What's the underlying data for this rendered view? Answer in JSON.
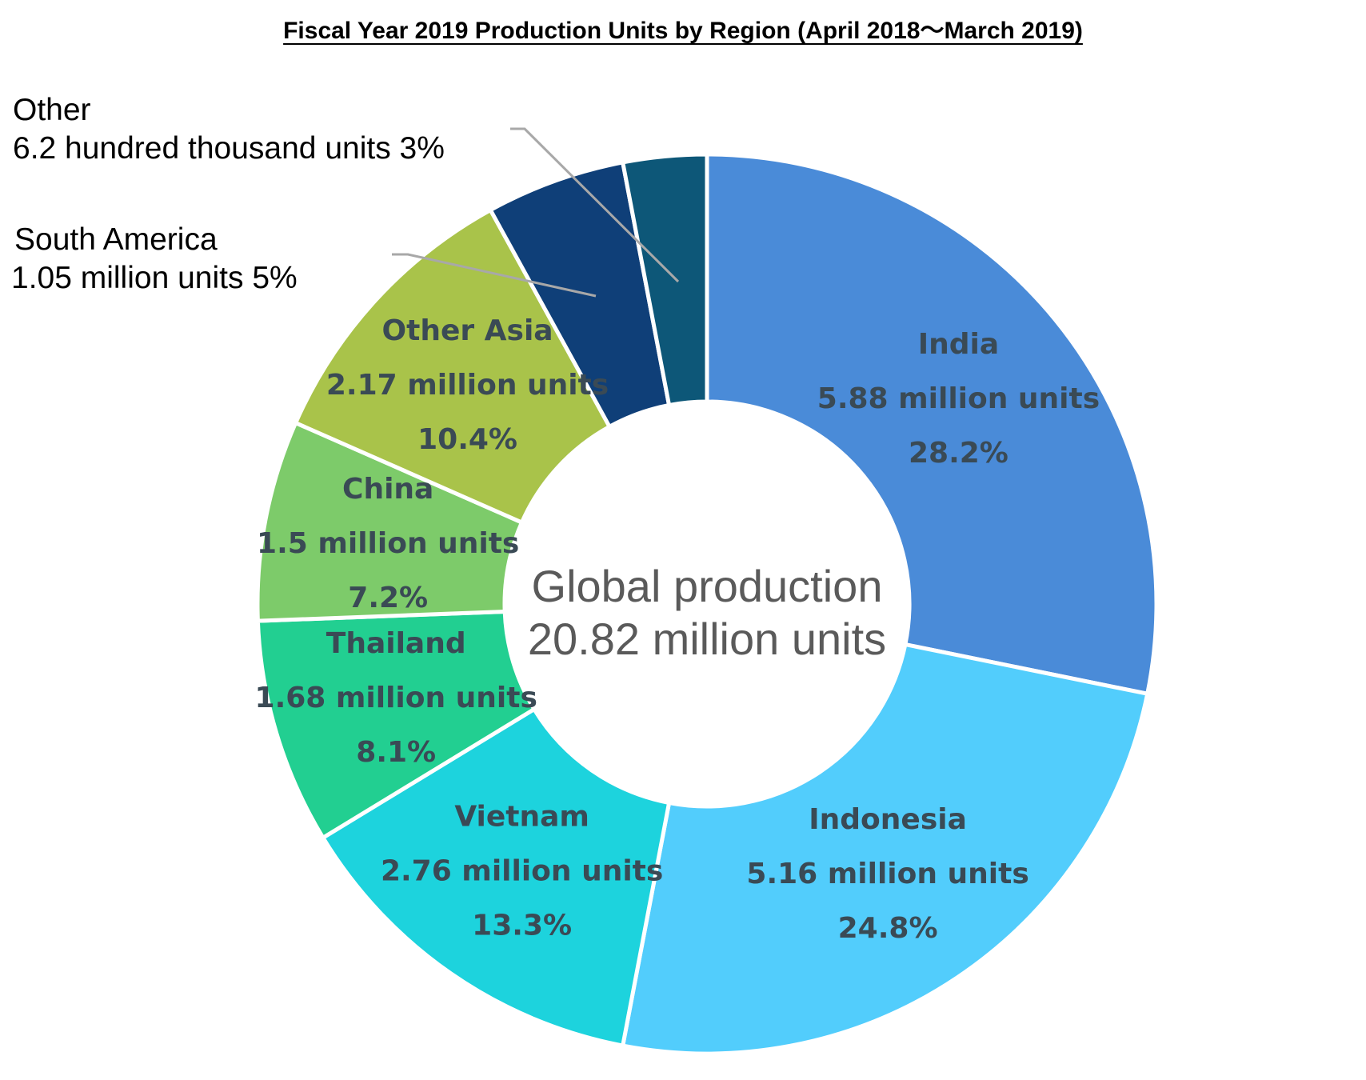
{
  "chart_data": {
    "type": "pie",
    "title": "Fiscal Year 2019 Production Units by Region (April 2018～March 2019)",
    "center_text": [
      "Global production",
      "20.82 million units"
    ],
    "slices": [
      {
        "name": "India",
        "value_label": "5.88 million units",
        "percent_label": "28.2%",
        "value": 5.88,
        "percent": 28.2,
        "color": "#4a8bd8"
      },
      {
        "name": "Indonesia",
        "value_label": "5.16 million units",
        "percent_label": "24.8%",
        "value": 5.16,
        "percent": 24.8,
        "color": "#52cdfc"
      },
      {
        "name": "Vietnam",
        "value_label": "2.76 million units",
        "percent_label": "13.3%",
        "value": 2.76,
        "percent": 13.3,
        "color": "#1dd3dd"
      },
      {
        "name": "Thailand",
        "value_label": "1.68 million units",
        "percent_label": "8.1%",
        "value": 1.68,
        "percent": 8.1,
        "color": "#22cf91"
      },
      {
        "name": "China",
        "value_label": "1.5 million units",
        "percent_label": "7.2%",
        "value": 1.5,
        "percent": 7.2,
        "color": "#7dcb6a"
      },
      {
        "name": "Other Asia",
        "value_label": "2.17 million units",
        "percent_label": "10.4%",
        "value": 2.17,
        "percent": 10.4,
        "color": "#a9c34a"
      },
      {
        "name": "South America",
        "value_label": "1.05 million units 5%",
        "percent_label": "5%",
        "value": 1.05,
        "percent": 5,
        "color": "#0f3f78"
      },
      {
        "name": "Other",
        "value_label": "6.2 hundred thousand units 3%",
        "percent_label": "3%",
        "value": 0.62,
        "percent": 3,
        "color": "#0d5778"
      }
    ]
  }
}
